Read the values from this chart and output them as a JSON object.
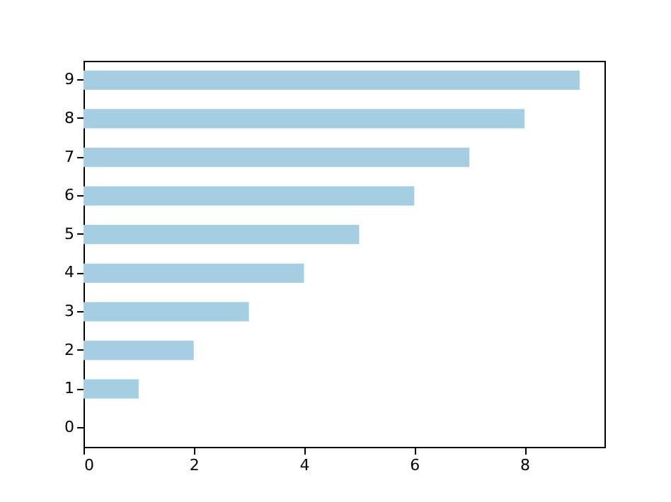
{
  "chart_data": {
    "type": "bar",
    "orientation": "horizontal",
    "categories": [
      "9",
      "8",
      "7",
      "6",
      "5",
      "4",
      "3",
      "2",
      "1",
      "0"
    ],
    "values": [
      9,
      8,
      7,
      6,
      5,
      4,
      3,
      2,
      1,
      0
    ],
    "color": "#a6cee3",
    "xlim": [
      0,
      9.45
    ],
    "xticks": [
      0,
      2,
      4,
      6,
      8
    ],
    "grid": false
  }
}
